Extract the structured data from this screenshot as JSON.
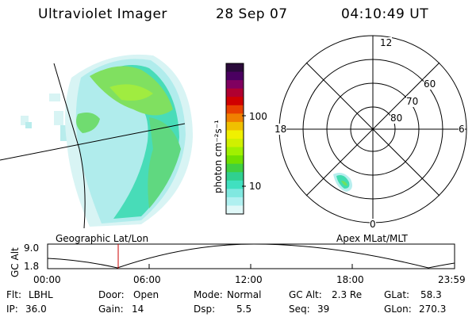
{
  "header": {
    "instrument": "Ultraviolet Imager",
    "date": "28 Sep 07",
    "time": "04:10:49 UT"
  },
  "colorbar": {
    "unit_label": "photon cm⁻²s⁻¹",
    "ticks": [
      "100",
      "10"
    ],
    "colors": [
      "#2a0a3a",
      "#4a0060",
      "#800060",
      "#b00030",
      "#d00000",
      "#e84000",
      "#f08000",
      "#f0c000",
      "#f0f000",
      "#d0f000",
      "#a0f000",
      "#70e000",
      "#40d040",
      "#30d090",
      "#40e0c0",
      "#80e8e0",
      "#b0f0f0",
      "#e0f8f8"
    ]
  },
  "polar_grid": {
    "mlt_labels": {
      "top": "12",
      "bottom": "0",
      "left": "18",
      "right": "6"
    },
    "lat_labels": [
      "60",
      "70",
      "80"
    ]
  },
  "timeline": {
    "left_caption": "Geographic Lat/Lon",
    "right_caption": "Apex MLat/MLT",
    "ylabel": "GC Alt",
    "y_ticks": [
      "9.0",
      "1.8"
    ],
    "x_ticks": [
      "00:00",
      "06:00",
      "12:00",
      "18:00",
      "23:59"
    ],
    "current_marker_time": "04:10",
    "marker_color": "#cc0000"
  },
  "info": {
    "filter_label": "Flt:",
    "filter": "LBHL",
    "door_label": "Door:",
    "door": "Open",
    "mode_label": "Mode:",
    "mode": "Normal",
    "gcalt_label": "GC Alt:",
    "gcalt": "2.3 Re",
    "glat_label": "GLat:",
    "glat": "58.3",
    "ip_label": "IP:",
    "ip": "36.0",
    "gain_label": "Gain:",
    "gain": "14",
    "dsp_label": "Dsp:",
    "dsp": "5.5",
    "seq_label": "Seq:",
    "seq": "39",
    "glon_label": "GLon:",
    "glon": "270.3"
  }
}
